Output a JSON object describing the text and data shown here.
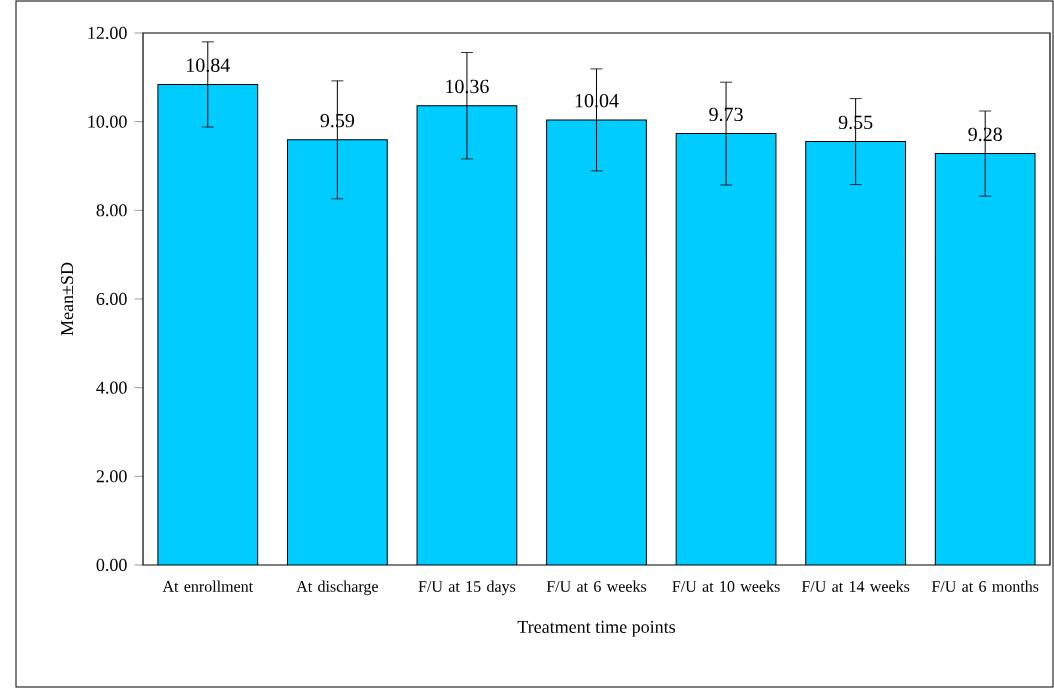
{
  "chart_data": {
    "type": "bar",
    "xlabel": "Treatment time points",
    "ylabel": "Mean±SD",
    "categories": [
      "At enrollment",
      "At discharge",
      "F/U at 15 days",
      "F/U at 6 weeks",
      "F/U at 10 weeks",
      "F/U at 14 weeks",
      "F/U at 6 months"
    ],
    "values": [
      10.84,
      9.59,
      10.36,
      10.04,
      9.73,
      9.55,
      9.28
    ],
    "errors": [
      0.96,
      1.33,
      1.2,
      1.15,
      1.16,
      0.97,
      0.96
    ],
    "color": "#00ccff",
    "data_labels": true,
    "grid": false,
    "ylim": [
      0,
      12
    ],
    "yticks": [
      {
        "value": 0,
        "label": "0.00"
      },
      {
        "value": 2,
        "label": "2.00"
      },
      {
        "value": 4,
        "label": "4.00"
      },
      {
        "value": 6,
        "label": "6.00"
      },
      {
        "value": 8,
        "label": "8.00"
      },
      {
        "value": 10,
        "label": "10.00"
      },
      {
        "value": 12,
        "label": "12.00"
      }
    ]
  }
}
